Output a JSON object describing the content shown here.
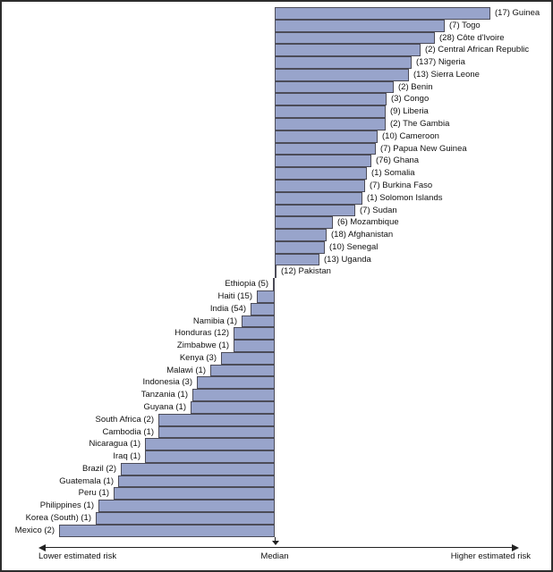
{
  "chart_data": {
    "type": "bar",
    "variant": "diverging-tornado",
    "orientation": "horizontal",
    "title": "",
    "axis": {
      "left_label": "Lower estimated risk",
      "center_label": "Median",
      "right_label": "Higher estimated risk"
    },
    "legend": "none",
    "grid": false,
    "bar_color": "#98a4cb",
    "bar_border_color": "#4c4c58",
    "length_unit": "px offset from median (estimated from image)",
    "rows": [
      {
        "country": "Guinea",
        "count": 17,
        "label": "(17) Guinea",
        "side": "right",
        "length": 241
      },
      {
        "country": "Togo",
        "count": 7,
        "label": "(7) Togo",
        "side": "right",
        "length": 190
      },
      {
        "country": "Côte d'Ivoire",
        "count": 28,
        "label": "(28) Côte d'Ivoire",
        "side": "right",
        "length": 179
      },
      {
        "country": "Central African Republic",
        "count": 2,
        "label": "(2) Central African Republic",
        "side": "right",
        "length": 163
      },
      {
        "country": "Nigeria",
        "count": 137,
        "label": "(137) Nigeria",
        "side": "right",
        "length": 153
      },
      {
        "country": "Sierra Leone",
        "count": 13,
        "label": "(13) Sierra Leone",
        "side": "right",
        "length": 150
      },
      {
        "country": "Benin",
        "count": 2,
        "label": "(2) Benin",
        "side": "right",
        "length": 133
      },
      {
        "country": "Congo",
        "count": 3,
        "label": "(3) Congo",
        "side": "right",
        "length": 125
      },
      {
        "country": "Liberia",
        "count": 9,
        "label": "(9) Liberia",
        "side": "right",
        "length": 124
      },
      {
        "country": "The Gambia",
        "count": 2,
        "label": "(2) The Gambia",
        "side": "right",
        "length": 124
      },
      {
        "country": "Cameroon",
        "count": 10,
        "label": "(10) Cameroon",
        "side": "right",
        "length": 115
      },
      {
        "country": "Papua New Guinea",
        "count": 7,
        "label": "(7) Papua New Guinea",
        "side": "right",
        "length": 113
      },
      {
        "country": "Ghana",
        "count": 76,
        "label": "(76) Ghana",
        "side": "right",
        "length": 108
      },
      {
        "country": "Somalia",
        "count": 1,
        "label": "(1) Somalia",
        "side": "right",
        "length": 103
      },
      {
        "country": "Burkina Faso",
        "count": 7,
        "label": "(7) Burkina Faso",
        "side": "right",
        "length": 101
      },
      {
        "country": "Solomon Islands",
        "count": 1,
        "label": "(1) Solomon Islands",
        "side": "right",
        "length": 98
      },
      {
        "country": "Sudan",
        "count": 7,
        "label": "(7) Sudan",
        "side": "right",
        "length": 90
      },
      {
        "country": "Mozambique",
        "count": 6,
        "label": "(6) Mozambique",
        "side": "right",
        "length": 65
      },
      {
        "country": "Afghanistan",
        "count": 18,
        "label": "(18) Afghanistan",
        "side": "right",
        "length": 58
      },
      {
        "country": "Senegal",
        "count": 10,
        "label": "(10) Senegal",
        "side": "right",
        "length": 56
      },
      {
        "country": "Uganda",
        "count": 13,
        "label": "(13) Uganda",
        "side": "right",
        "length": 50
      },
      {
        "country": "Pakistan",
        "count": 12,
        "label": "(12) Pakistan",
        "side": "right",
        "length": 2
      },
      {
        "country": "Ethiopia",
        "count": 5,
        "label": "Ethiopia (5)",
        "side": "left",
        "length": 2
      },
      {
        "country": "Haiti",
        "count": 15,
        "label": "Haiti (15)",
        "side": "left",
        "length": 20
      },
      {
        "country": "India",
        "count": 54,
        "label": "India (54)",
        "side": "left",
        "length": 27
      },
      {
        "country": "Namibia",
        "count": 1,
        "label": "Namibia (1)",
        "side": "left",
        "length": 37
      },
      {
        "country": "Honduras",
        "count": 12,
        "label": "Honduras (12)",
        "side": "left",
        "length": 46
      },
      {
        "country": "Zimbabwe",
        "count": 1,
        "label": "Zimbabwe (1)",
        "side": "left",
        "length": 46
      },
      {
        "country": "Kenya",
        "count": 3,
        "label": "Kenya (3)",
        "side": "left",
        "length": 60
      },
      {
        "country": "Malawi",
        "count": 1,
        "label": "Malawi (1)",
        "side": "left",
        "length": 72
      },
      {
        "country": "Indonesia",
        "count": 3,
        "label": "Indonesia (3)",
        "side": "left",
        "length": 87
      },
      {
        "country": "Tanzania",
        "count": 1,
        "label": "Tanzania (1)",
        "side": "left",
        "length": 92
      },
      {
        "country": "Guyana",
        "count": 1,
        "label": "Guyana (1)",
        "side": "left",
        "length": 94
      },
      {
        "country": "South Africa",
        "count": 2,
        "label": "South Africa (2)",
        "side": "left",
        "length": 130
      },
      {
        "country": "Cambodia",
        "count": 1,
        "label": "Cambodia (1)",
        "side": "left",
        "length": 130
      },
      {
        "country": "Nicaragua",
        "count": 1,
        "label": "Nicaragua (1)",
        "side": "left",
        "length": 145
      },
      {
        "country": "Iraq",
        "count": 1,
        "label": "Iraq (1)",
        "side": "left",
        "length": 145
      },
      {
        "country": "Brazil",
        "count": 2,
        "label": "Brazil (2)",
        "side": "left",
        "length": 172
      },
      {
        "country": "Guatemala",
        "count": 1,
        "label": "Guatemala (1)",
        "side": "left",
        "length": 175
      },
      {
        "country": "Peru",
        "count": 1,
        "label": "Peru (1)",
        "side": "left",
        "length": 180
      },
      {
        "country": "Philippines",
        "count": 1,
        "label": "Philippines (1)",
        "side": "left",
        "length": 197
      },
      {
        "country": "Korea (South)",
        "count": 1,
        "label": "Korea (South) (1)",
        "side": "left",
        "length": 200
      },
      {
        "country": "Mexico",
        "count": 2,
        "label": "Mexico (2)",
        "side": "left",
        "length": 241
      }
    ]
  }
}
